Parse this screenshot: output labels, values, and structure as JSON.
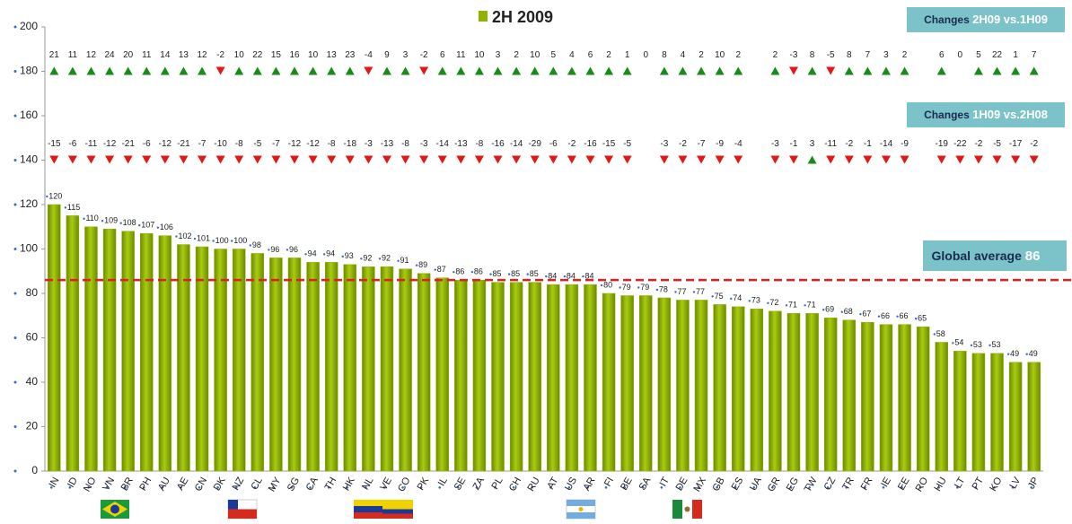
{
  "chart_data": {
    "type": "bar",
    "title": "2H 2009",
    "categories": [
      "IN",
      "ID",
      "NO",
      "VN",
      "BR",
      "PH",
      "AU",
      "AE",
      "CN",
      "DK",
      "NZ",
      "CL",
      "MY",
      "SG",
      "CA",
      "TH",
      "HK",
      "NL",
      "VE",
      "CO",
      "PK",
      "IL",
      "SE",
      "ZA",
      "PL",
      "CH",
      "RU",
      "AT",
      "US",
      "AR",
      "FI",
      "BE",
      "SA",
      "IT",
      "DE",
      "MX",
      "GB",
      "ES",
      "UA",
      "GR",
      "EG",
      "TW",
      "CZ",
      "TR",
      "FR",
      "IE",
      "EE",
      "RO",
      "HU",
      "LT",
      "PT",
      "KO",
      "LV",
      "JP"
    ],
    "series": [
      {
        "name": "2H 2009",
        "color": "#8fb400",
        "values": [
          120,
          115,
          110,
          109,
          108,
          107,
          106,
          102,
          101,
          100,
          100,
          98,
          96,
          96,
          94,
          94,
          93,
          92,
          92,
          91,
          89,
          87,
          86,
          86,
          85,
          85,
          85,
          84,
          84,
          84,
          80,
          79,
          79,
          78,
          77,
          77,
          75,
          74,
          73,
          72,
          71,
          71,
          69,
          68,
          67,
          66,
          66,
          65,
          58,
          54,
          53,
          53,
          49,
          49
        ]
      }
    ],
    "ylim": [
      0,
      200
    ],
    "yticks": [
      0,
      20,
      40,
      60,
      80,
      100,
      120,
      140,
      160,
      180,
      200
    ],
    "average": {
      "label": "Global average",
      "value": 86,
      "color": "#e02020"
    },
    "up_color": "#1a8a1a",
    "down_color": "#e01818",
    "changes": [
      {
        "label": {
          "prefix": "Changes",
          "highlight": "2H09 vs.1H09"
        },
        "values": [
          21,
          11,
          12,
          24,
          20,
          11,
          14,
          13,
          12,
          -2,
          10,
          22,
          15,
          16,
          10,
          13,
          23,
          -4,
          9,
          3,
          -2,
          6,
          11,
          10,
          3,
          2,
          10,
          5,
          4,
          6,
          2,
          1,
          0,
          8,
          4,
          2,
          10,
          2,
          null,
          2,
          -3,
          8,
          -5,
          8,
          7,
          3,
          2,
          null,
          6,
          0,
          5,
          22,
          1,
          7
        ]
      },
      {
        "label": {
          "prefix": "Changes",
          "highlight": "1H09 vs.2H08"
        },
        "values": [
          -15,
          -6,
          -11,
          -12,
          -21,
          -6,
          -12,
          -21,
          -7,
          -10,
          -8,
          -5,
          -7,
          -12,
          -12,
          -8,
          -18,
          -3,
          -13,
          -8,
          -3,
          -14,
          -13,
          -8,
          -16,
          -14,
          -29,
          -6,
          -2,
          -16,
          -15,
          -5,
          null,
          -3,
          -2,
          -7,
          -9,
          -4,
          null,
          -3,
          -1,
          3,
          -11,
          -2,
          -1,
          -14,
          -9,
          null,
          -19,
          -22,
          -2,
          -5,
          -17,
          -2
        ]
      }
    ]
  }
}
